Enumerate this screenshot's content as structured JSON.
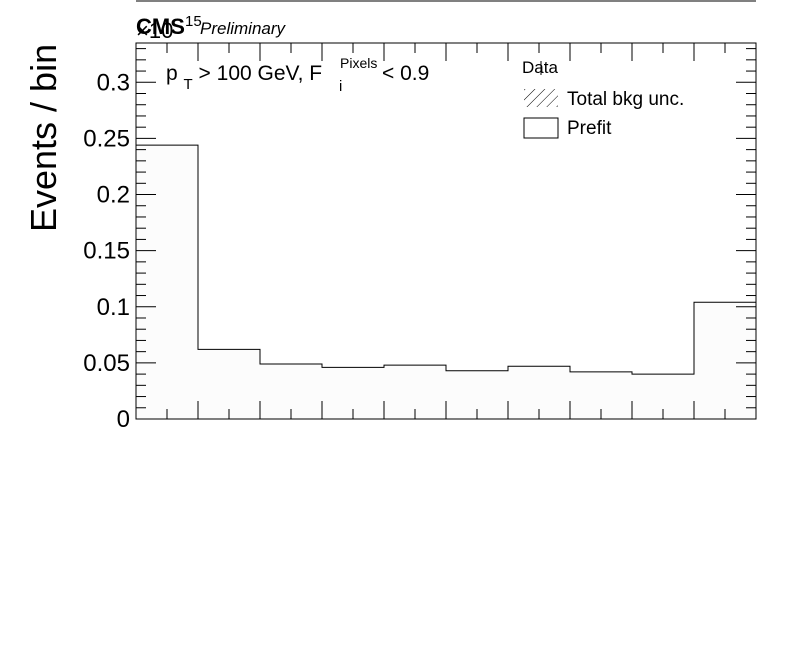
{
  "header": {
    "experiment": "CMS",
    "status": "Preliminary",
    "exponent_base": "×10",
    "exponent_power": "15"
  },
  "annotation": {
    "pt_symbol": "p",
    "pt_sub": "T",
    "pt_rest": " > 100 GeV, F",
    "f_sub": "i",
    "f_sup": "Pixels",
    "f_rest": " < 0.9"
  },
  "legend": {
    "data_label": "Data",
    "unc_label": "Total bkg unc.",
    "prefit_label": "Prefit"
  },
  "chart_data": {
    "type": "bar",
    "ylabel": "Events / bin",
    "xlabel": "",
    "ylim": [
      0,
      0.335
    ],
    "yticks": [
      0,
      0.05,
      0.1,
      0.15,
      0.2,
      0.25,
      0.3
    ],
    "ytick_labels": [
      "0",
      "0.05",
      "0.1",
      "0.15",
      "0.2",
      "0.25",
      "0.3"
    ],
    "y_scale_factor": "1e15",
    "legend_position": "top-right",
    "grid": false,
    "series": [
      {
        "name": "Prefit",
        "style": "step-histogram",
        "fill": "#fcfcfc",
        "bin_edges": [
          0,
          1,
          2,
          3,
          4,
          5,
          6,
          7,
          8,
          9,
          10
        ],
        "values": [
          0.244,
          0.062,
          0.049,
          0.046,
          0.048,
          0.043,
          0.047,
          0.042,
          0.04,
          0.104
        ]
      }
    ]
  }
}
